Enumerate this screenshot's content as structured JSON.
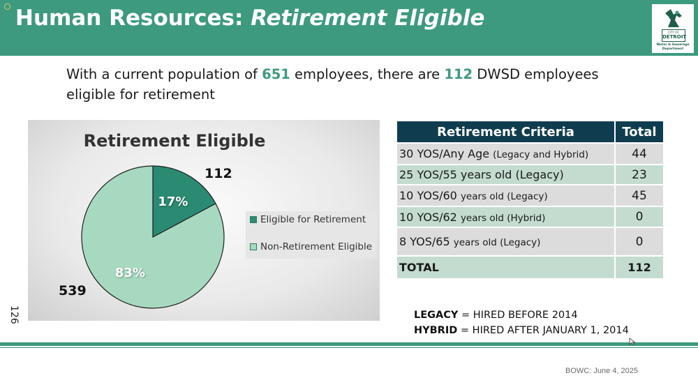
{
  "header": {
    "title_plain": "Human Resources: ",
    "title_emph": "Retirement Eligible",
    "logo": {
      "icon": "spirit-of-detroit-icon",
      "city_line": "CITY OF",
      "city_name": "DETROIT",
      "dept_line1": "Water & Sewerage",
      "dept_line2": "Department"
    }
  },
  "intro": {
    "part1": "With a current population of ",
    "population": "651",
    "part2": " employees, there are ",
    "eligible": "112",
    "part3": " DWSD employees eligible for retirement"
  },
  "chart_data": {
    "type": "pie",
    "title": "Retirement Eligible",
    "slices": [
      {
        "name": "Eligible for Retirement",
        "value": 112,
        "percent_label": "17%",
        "color": "#2b8a72"
      },
      {
        "name": "Non-Retirement Eligible",
        "value": 539,
        "percent_label": "83%",
        "color": "#a7d9c0"
      }
    ],
    "legend": "right"
  },
  "page_number": "126",
  "table": {
    "headers": [
      "Retirement Criteria",
      "Total"
    ],
    "rows": [
      {
        "main": "30 YOS/Any Age ",
        "small": "(Legacy and Hybrid)",
        "total": "44"
      },
      {
        "main": "25 YOS/55 years old (Legacy)",
        "small": "",
        "total": "23"
      },
      {
        "main": "10 YOS/60 ",
        "small": "years old (Legacy)",
        "total": "45"
      },
      {
        "main": "10 YOS/62 ",
        "small": "years old (Hybrid)",
        "total": "0"
      },
      {
        "main": "8 YOS/65 ",
        "small": "years old (Legacy)",
        "total": "0"
      }
    ],
    "total_label": "TOTAL",
    "total_value": "112"
  },
  "definitions": {
    "legacy_term": "LEGACY",
    "legacy_def": " = HIRED BEFORE 2014",
    "hybrid_term": "HYBRID",
    "hybrid_def": " = HIRED AFTER JANUARY 1, 2014"
  },
  "footer": "BOWC: June 4, 2025",
  "colors": {
    "header": "#3d9a7f",
    "table_header": "#0f3d4f",
    "row_grey": "#dcdcdc",
    "row_green": "#c3dccf",
    "highlight": "#3d9a7f"
  }
}
